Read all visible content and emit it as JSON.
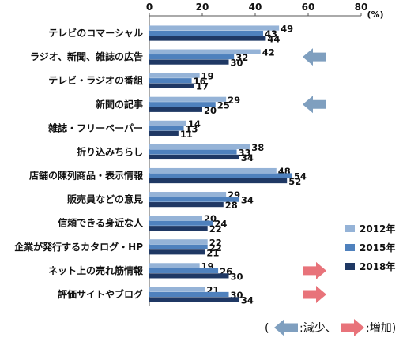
{
  "chart_data": {
    "type": "bar",
    "orientation": "horizontal",
    "categories": [
      "テレビのコマーシャル",
      "ラジオ、新聞、雑誌の広告",
      "テレビ・ラジオの番組",
      "新聞の記事",
      "雑誌・フリーペーパー",
      "折り込みちらし",
      "店舗の陳列商品・表示情報",
      "販売員などの意見",
      "信頼できる身近な人",
      "企業が発行するカタログ・HP",
      "ネット上の売れ筋情報",
      "評価サイトやブログ"
    ],
    "series": [
      {
        "name": "2012年",
        "color": "#95b3d7",
        "values": [
          49,
          42,
          19,
          29,
          14,
          38,
          48,
          29,
          20,
          22,
          19,
          21
        ]
      },
      {
        "name": "2015年",
        "color": "#4f81bd",
        "values": [
          43,
          32,
          16,
          25,
          13,
          33,
          54,
          34,
          24,
          22,
          26,
          30
        ]
      },
      {
        "name": "2018年",
        "color": "#1f3864",
        "values": [
          44,
          30,
          17,
          20,
          11,
          34,
          52,
          28,
          22,
          21,
          30,
          34
        ]
      }
    ],
    "xlim": [
      0,
      80
    ],
    "xticks": [
      "0",
      "20",
      "40",
      "60",
      "80"
    ],
    "unit": "(%)",
    "legend_position": "right",
    "markers": [
      {
        "category_index": 1,
        "direction": "decrease",
        "color": "#7f9fbf"
      },
      {
        "category_index": 3,
        "direction": "decrease",
        "color": "#7f9fbf"
      },
      {
        "category_index": 10,
        "direction": "increase",
        "color": "#e8737a"
      },
      {
        "category_index": 11,
        "direction": "increase",
        "color": "#e8737a"
      }
    ]
  },
  "note": {
    "open": "(",
    "decrease_text": ":減少、",
    "increase_text": ":増加)"
  }
}
